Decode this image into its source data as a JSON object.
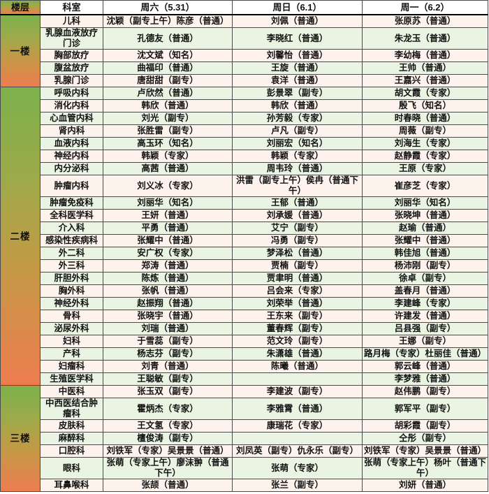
{
  "header": {
    "floor": "楼层",
    "dept": "科室",
    "days": [
      "周六（5.31）",
      "周日（6.1）",
      "周一（6.2）"
    ]
  },
  "colors": {
    "floor_gradient_top": "#7db14c",
    "floor_gradient_bottom": "#ee7c50",
    "row_warm": "#fdf3ec",
    "row_green": "#eaf4e2",
    "grid_line": "#4a4a4a",
    "text": "#111111"
  },
  "floors": [
    {
      "label": "一楼",
      "rows": [
        {
          "dept": "儿科",
          "sat": "沈颖（副专上午）陈彦（普通）",
          "sun": "刘佩（普通）",
          "mon": "张原苏（普通）"
        },
        {
          "dept": "乳腺血液放疗门诊",
          "sat": "孔德友（普通）",
          "sun": "李晓红（普通）",
          "mon": "朱龙玉（普通）"
        },
        {
          "dept": "胸部放疗",
          "sat": "沈文斌（知名）",
          "sun": "刘馨怡（普通）",
          "mon": "李幼梅（普通）"
        },
        {
          "dept": "腹盆放疗",
          "sat": "曲福印（普通）",
          "sun": "王旋（普通）",
          "mon": "王帅（普通）"
        },
        {
          "dept": "乳腺门诊",
          "sat": "唐甜甜（副专）",
          "sun": "袁洋（普通）",
          "mon": "王嘉兴（普通）"
        }
      ]
    },
    {
      "label": "二楼",
      "rows": [
        {
          "dept": "呼吸内科",
          "sat": "卢欣然（普通）",
          "sun": "彭景翠（副专）",
          "mon": "胡文霞（专家）"
        },
        {
          "dept": "消化内科",
          "sat": "韩欣（普通）",
          "sun": "韩欣（普通）",
          "mon": "殷飞（知名）"
        },
        {
          "dept": "心血管内科",
          "sat": "刘光（副专）",
          "sun": "孙芳毅（专家）",
          "mon": "时春晓（普通）"
        },
        {
          "dept": "肾内科",
          "sat": "张胜雷（副专）",
          "sun": "卢凡（副专）",
          "mon": "周薇（副专）"
        },
        {
          "dept": "血液内科",
          "sat": "高玉环（知名）",
          "sun": "刘丽宏（知名）",
          "mon": "刘海生（专家）"
        },
        {
          "dept": "神经内科",
          "sat": "韩颖（专家）",
          "sun": "韩颖（专家）",
          "mon": "赵静霞（专家）"
        },
        {
          "dept": "内分泌科",
          "sat": "高茜（普通）",
          "sun": "周韦玲（普通）",
          "mon": "王原（专家）"
        },
        {
          "dept": "肿瘤内科",
          "sat": "刘义冰（专家）",
          "sun": "洪雷（副专上午）侯冉（普通下午）",
          "mon": "崔彦芝（专家）"
        },
        {
          "dept": "肿瘤免疫科",
          "sat": "刘丽华（知名）",
          "sun": "王郁（普通）",
          "mon": "刘丽华（知名）"
        },
        {
          "dept": "全科医学科",
          "sat": "王妍（普通）",
          "sun": "刘承媛（普通）",
          "mon": "张晓坤（普通）"
        },
        {
          "dept": "介入科",
          "sat": "平勇（普通）",
          "sun": "艾宁（副专）",
          "mon": "赵瑜（普通）"
        },
        {
          "dept": "感染性疾病科",
          "sat": "张耀中（普通）",
          "sun": "冯勇（副专）",
          "mon": "张耀中（普通）"
        },
        {
          "dept": "外二科",
          "sat": "安广权（专家）",
          "sun": "梦泽松（普通）",
          "mon": "韩佳旭（普通）"
        },
        {
          "dept": "外三科",
          "sat": "郑涛（普通）",
          "sun": "贾楠（副专）",
          "mon": "杨沛刚（副专）"
        },
        {
          "dept": "肝胆外科",
          "sat": "陈炼（普通）",
          "sun": "贾聿明（普通）",
          "mon": "徐卓（副专）"
        },
        {
          "dept": "胸外科",
          "sat": "张帆（普通）",
          "sun": "吕会来（专家）",
          "mon": "盖春月（普通）"
        },
        {
          "dept": "神经外科",
          "sat": "赵振翔（普通）",
          "sun": "刘荣举（普通）",
          "mon": "李建峰（专家）"
        },
        {
          "dept": "骨科",
          "sat": "张晓宇（普通）",
          "sun": "王东来（副专）",
          "mon": "许建发（普通）"
        },
        {
          "dept": "泌尿外科",
          "sat": "刘瑞（普通）",
          "sun": "董春辉（副专）",
          "mon": "吕县强（副专）"
        },
        {
          "dept": "妇科",
          "sat": "于雪蕊（副专）",
          "sun": "范文玲（副专）",
          "mon": "王娜（副专）"
        },
        {
          "dept": "产科",
          "sat": "杨志芬（副专）",
          "sun": "朱潇雄（普通）",
          "mon": "路月梅（专家）杜丽佳（普通）"
        },
        {
          "dept": "妇瘤科",
          "sat": "刘青（普通）",
          "sun": "陈曦（普通）",
          "mon": "郭云峰（普通）"
        },
        {
          "dept": "生殖医学科",
          "sat": "王聪敏（副专）",
          "sun": "",
          "mon": "李梦雅（普通）"
        }
      ]
    },
    {
      "label": "三楼",
      "rows": [
        {
          "dept": "中医科",
          "sat": "张玉双（副专）",
          "sun": "李建波（副专）",
          "mon": "赵伟鹏（副专）"
        },
        {
          "dept": "中西医结合肿瘤科",
          "sat": "霍炳杰（专家）",
          "sun": "李雅霄（普通）",
          "mon": "郭军平（副专）"
        },
        {
          "dept": "皮肤科",
          "sat": "王文氢（专家）",
          "sun": "康瑞花（专家）",
          "mon": "胡彩霞（副专）"
        },
        {
          "dept": "麻醉科",
          "sat": "檀俊涛（副专）",
          "sun": "",
          "mon": "仝彤（副专）"
        },
        {
          "dept": "口腔科",
          "sat": "刘铁军（专家）吴景景（普通）",
          "sun": "刘凤英（副专）仇永乐（副专）",
          "mon": "刘铁军（专家）吴景景（普通）"
        },
        {
          "dept": "眼科",
          "sat": "张萌（专家上午）廖沫翀（普通下午）",
          "sun": "张萌（专家）",
          "mon": "张萌（专家上午）杨叶（普通下午）"
        },
        {
          "dept": "耳鼻喉科",
          "sat": "张颉（普通）",
          "sun": "张兰（副专）",
          "mon": "刘妍（普通）"
        }
      ]
    }
  ]
}
